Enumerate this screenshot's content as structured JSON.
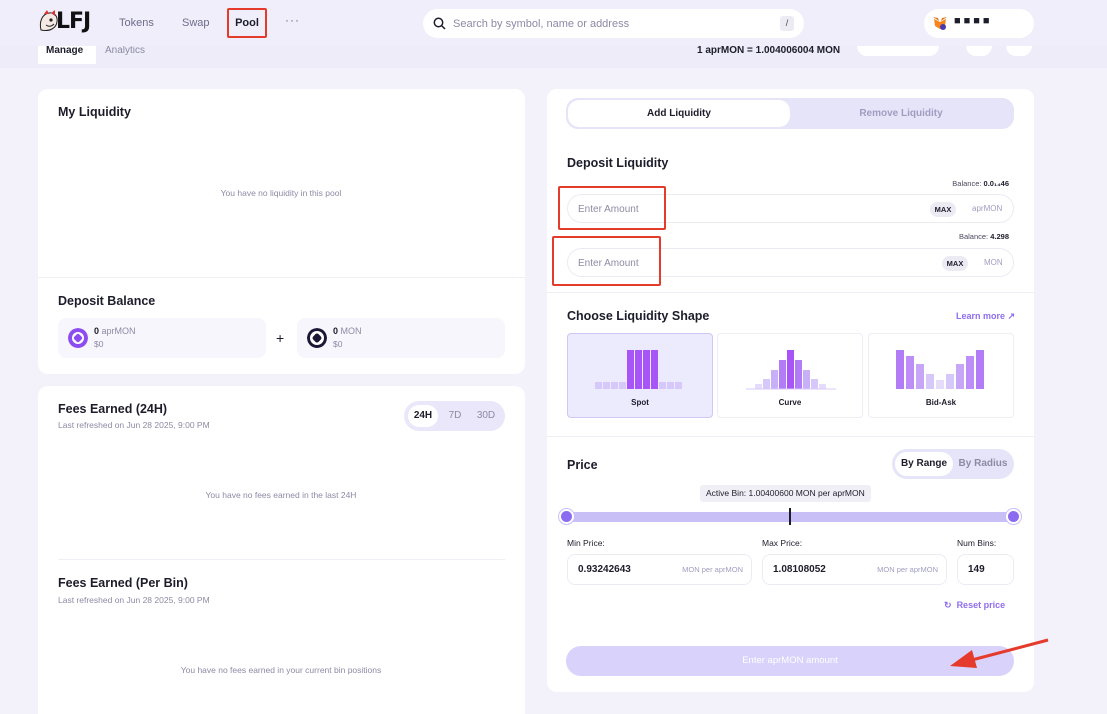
{
  "nav": {
    "logo": "LFJ",
    "items": [
      {
        "label": "Tokens"
      },
      {
        "label": "Swap"
      },
      {
        "label": "Pool"
      }
    ],
    "more": "···",
    "search_placeholder": "Search by symbol, name or address",
    "search_shortcut": "/",
    "wallet_address": "■■■■"
  },
  "subheader": {
    "tabs": [
      "Manage",
      "Analytics"
    ],
    "rate": "1 aprMON = 1.004006004 MON"
  },
  "my_liquidity": {
    "title": "My Liquidity",
    "empty": "You have no liquidity in this pool"
  },
  "deposit_balance": {
    "title": "Deposit Balance",
    "tokens": [
      {
        "amount": "0",
        "symbol": "aprMON",
        "usd": "$0"
      },
      {
        "amount": "0",
        "symbol": "MON",
        "usd": "$0"
      }
    ],
    "plus": "+"
  },
  "fees_24h": {
    "title": "Fees Earned (24H)",
    "refreshed": "Last refreshed on Jun 28 2025, 9:00 PM",
    "periods": [
      "24H",
      "7D",
      "30D"
    ],
    "empty": "You have no fees earned in the last 24H"
  },
  "fees_bin": {
    "title": "Fees Earned (Per Bin)",
    "refreshed": "Last refreshed on Jun 28 2025, 9:00 PM",
    "empty": "You have no fees earned in your current bin positions"
  },
  "liquidity_panel": {
    "tabs": [
      "Add Liquidity",
      "Remove Liquidity"
    ],
    "deposit_title": "Deposit Liquidity",
    "inputs": [
      {
        "balance_label": "Balance:",
        "balance": "0.0₁₄46",
        "placeholder": "Enter Amount",
        "max": "MAX",
        "token": "aprMON"
      },
      {
        "balance_label": "Balance:",
        "balance": "4.298",
        "placeholder": "Enter Amount",
        "max": "MAX",
        "token": "MON"
      }
    ],
    "shape_title": "Choose Liquidity Shape",
    "learn_more": "Learn more",
    "shapes": [
      {
        "label": "Spot"
      },
      {
        "label": "Curve"
      },
      {
        "label": "Bid-Ask"
      }
    ],
    "price_title": "Price",
    "range_modes": [
      "By Range",
      "By Radius"
    ],
    "active_bin": "Active Bin: 1.00400600 MON per aprMON",
    "min_price": {
      "label": "Min Price:",
      "value": "0.93242643",
      "unit": "MON per aprMON"
    },
    "max_price": {
      "label": "Max Price:",
      "value": "1.08108052",
      "unit": "MON per aprMON"
    },
    "num_bins": {
      "label": "Num Bins:",
      "value": "149"
    },
    "reset": "Reset price",
    "submit": "Enter aprMON amount"
  },
  "colors": {
    "accent": "#8f6df0",
    "highlight": "#e53b2c",
    "background": "#f3f2fb"
  }
}
